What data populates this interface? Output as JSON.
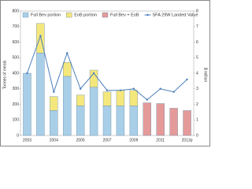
{
  "chart_data": {
    "type": "bar",
    "categories": [
      "2003",
      null,
      "2004",
      null,
      "2005",
      null,
      "2007",
      null,
      "2009",
      null,
      "2011",
      null,
      "2013p"
    ],
    "series": [
      {
        "name": "Full Bev portion",
        "color": "#a9cfe8",
        "values": [
          400,
          530,
          160,
          380,
          190,
          310,
          190,
          190,
          190,
          null,
          null,
          null,
          null
        ]
      },
      {
        "name": "EoB portion",
        "color": "#f4e77c",
        "values": [
          null,
          190,
          90,
          90,
          70,
          110,
          90,
          100,
          100,
          null,
          null,
          null,
          null
        ]
      },
      {
        "name": "Full Bev + EoB",
        "color": "#e59a9a",
        "values": [
          null,
          null,
          null,
          null,
          null,
          null,
          null,
          null,
          null,
          210,
          205,
          175,
          160
        ]
      },
      {
        "name": "SFA 29W Landed Value",
        "color": "#4a7ebb",
        "axis": "y2",
        "type": "line",
        "values": [
          4.0,
          6.4,
          2.8,
          5.3,
          3.0,
          4.0,
          2.9,
          2.9,
          3.0,
          2.3,
          3.0,
          2.8,
          3.6
        ]
      }
    ],
    "ylabel": "Tonnes of meals",
    "y2label": "$ million",
    "ylim": [
      0,
      800
    ],
    "yticks": [
      0,
      100,
      200,
      300,
      400,
      500,
      600,
      700,
      800
    ],
    "y2lim": [
      0,
      8
    ],
    "y2ticks": [
      0,
      1,
      2,
      3,
      4,
      5,
      6,
      7,
      8
    ],
    "stacked": true
  }
}
